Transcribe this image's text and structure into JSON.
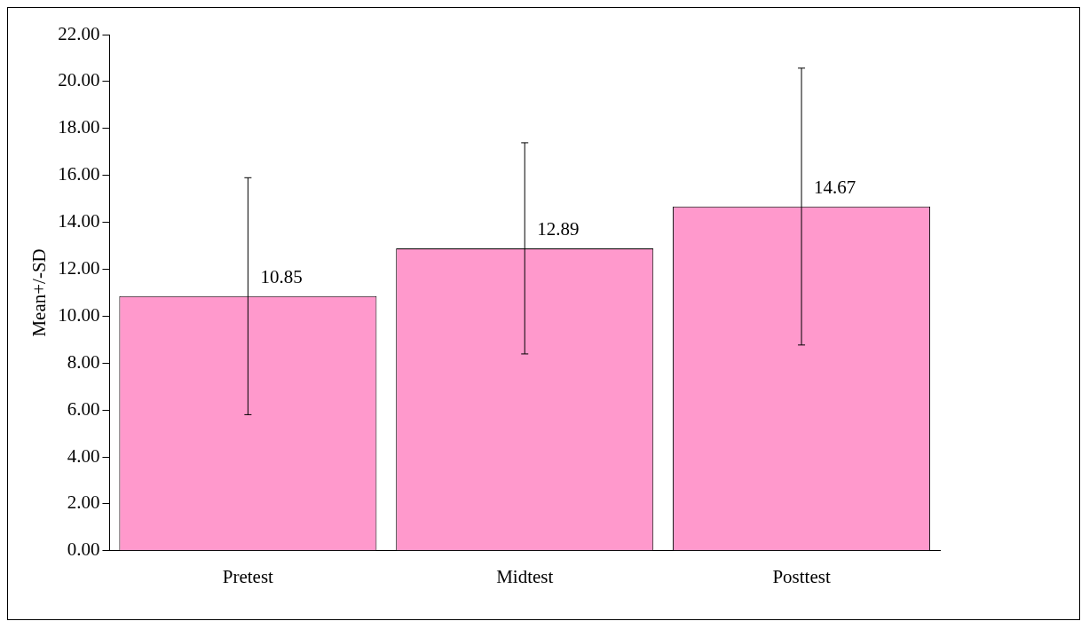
{
  "chart_data": {
    "type": "bar",
    "ylabel": "Mean+/-SD",
    "categories": [
      "Pretest",
      "Midtest",
      "Posttest"
    ],
    "values": [
      10.85,
      12.89,
      14.67
    ],
    "errors": [
      5.05,
      4.5,
      5.9
    ],
    "color": "#ff99cc",
    "data_labels": true,
    "ylim": [
      0,
      22
    ],
    "yticks": [
      {
        "value": 0,
        "label": "0.00"
      },
      {
        "value": 2,
        "label": "2.00"
      },
      {
        "value": 4,
        "label": "4.00"
      },
      {
        "value": 6,
        "label": "6.00"
      },
      {
        "value": 8,
        "label": "8.00"
      },
      {
        "value": 10,
        "label": "10.00"
      },
      {
        "value": 12,
        "label": "12.00"
      },
      {
        "value": 14,
        "label": "14.00"
      },
      {
        "value": 16,
        "label": "16.00"
      },
      {
        "value": 18,
        "label": "18.00"
      },
      {
        "value": 20,
        "label": "20.00"
      },
      {
        "value": 22,
        "label": "22.00"
      }
    ],
    "grid": false
  }
}
